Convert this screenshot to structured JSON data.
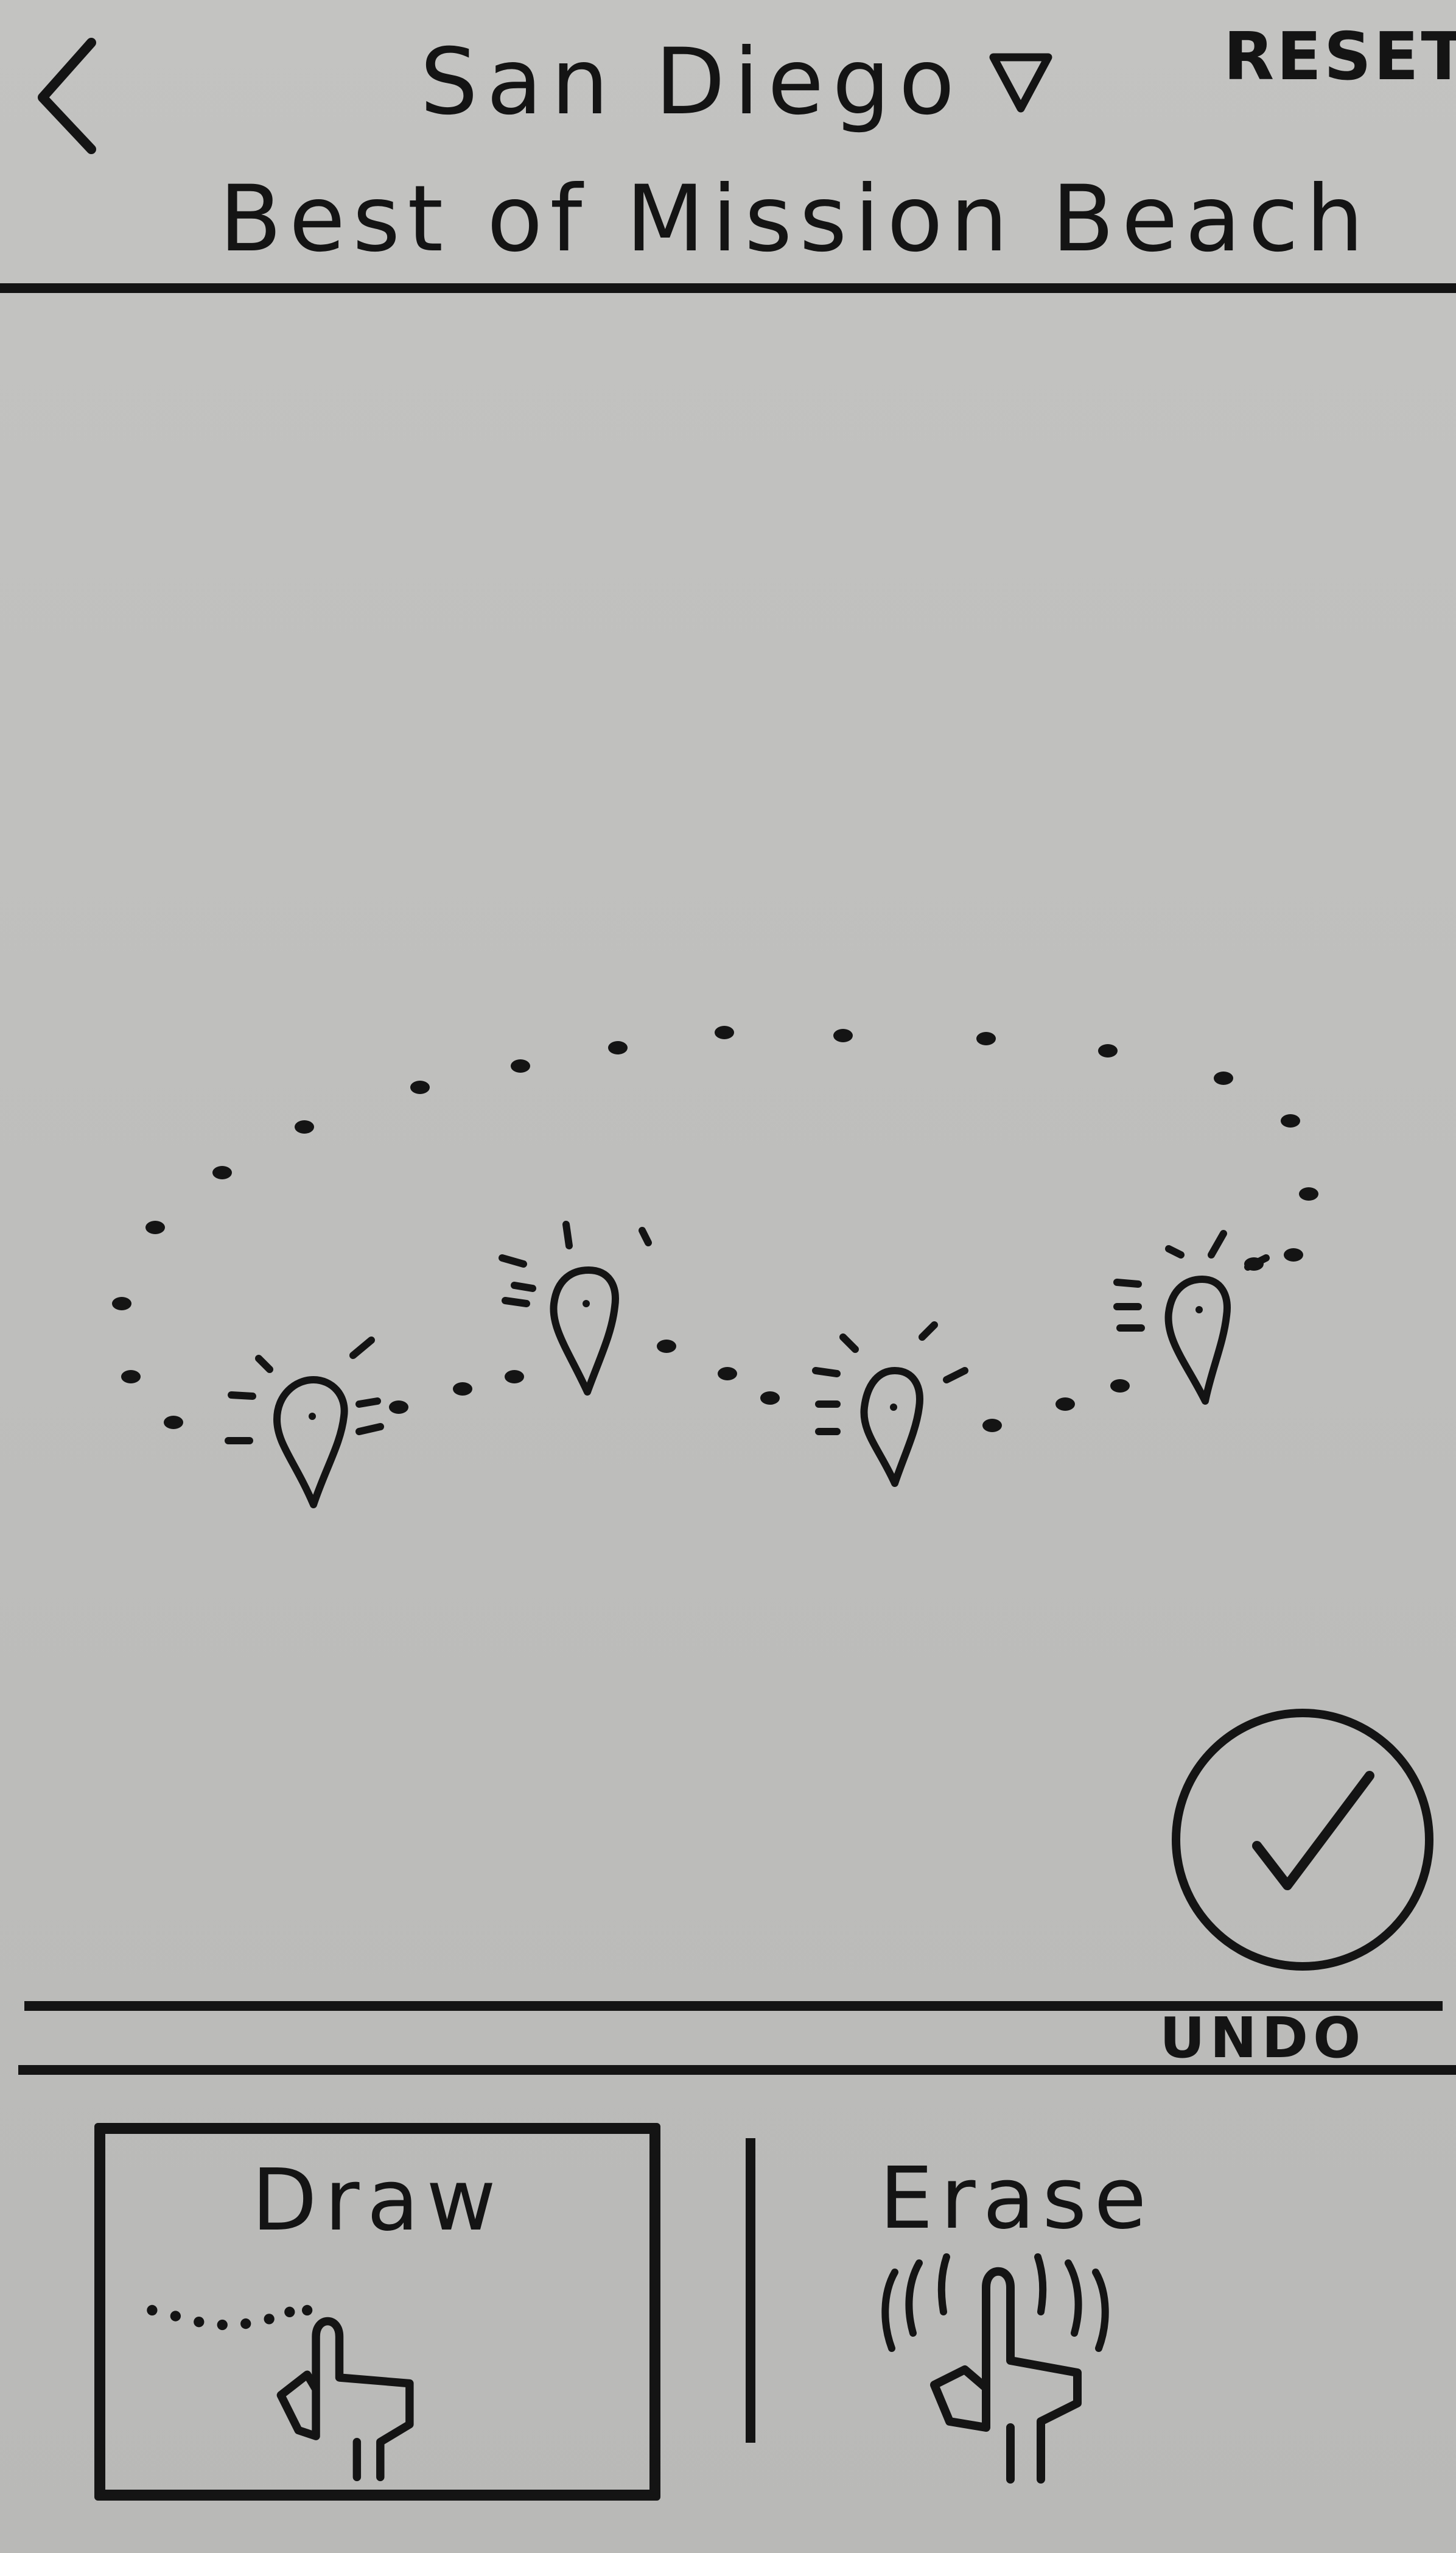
{
  "header": {
    "back_icon": "chevron-left-icon",
    "city": "San Diego",
    "city_dropdown_icon": "triangle-down-icon",
    "reset_label": "RESET",
    "title": "Best of Mission Beach"
  },
  "map": {
    "pins": [
      {
        "icon": "map-pin-icon"
      },
      {
        "icon": "map-pin-icon"
      },
      {
        "icon": "map-pin-icon"
      },
      {
        "icon": "map-pin-icon"
      }
    ],
    "route_style": "dotted"
  },
  "actions": {
    "confirm_icon": "checkmark-icon",
    "undo_label": "UNDO"
  },
  "toolbar": {
    "selected": "draw",
    "draw": {
      "label": "Draw",
      "icon": "finger-draw-icon"
    },
    "erase": {
      "label": "Erase",
      "icon": "finger-erase-icon"
    }
  },
  "colors": {
    "ink": "#141414",
    "paper": "#c0c0be"
  }
}
